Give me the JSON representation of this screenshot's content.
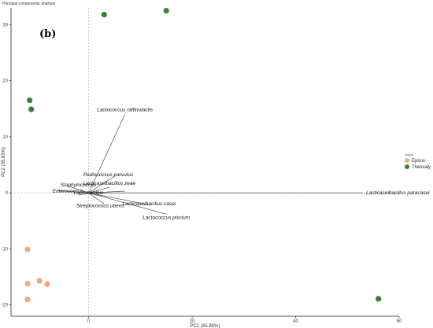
{
  "page_title": "Principal components analysis",
  "panel_label": "(b)",
  "colors": {
    "Epirus": "#f4a582",
    "Thessaly": "#3a7d3a",
    "axis": "#222222",
    "zero_line": "#bdbdbd",
    "loading": "#333333"
  },
  "chart_data": {
    "type": "scatter",
    "title": "",
    "xlabel": "PC1 (85.86%)",
    "ylabel": "PC2 (35.63%)",
    "xlim": [
      -15,
      60
    ],
    "ylim": [
      -22,
      33
    ],
    "xticks": [
      0,
      20,
      40,
      60
    ],
    "yticks": [
      -20,
      -10,
      0,
      10,
      20,
      30
    ],
    "grid": false,
    "legend_title": "region",
    "legend_position": "right",
    "series": [
      {
        "name": "Epirus",
        "points": [
          [
            -11.8,
            -10.1
          ],
          [
            -11.8,
            -16.2
          ],
          [
            -9.5,
            -15.7
          ],
          [
            -8.0,
            -16.3
          ],
          [
            -11.8,
            -19.0
          ]
        ]
      },
      {
        "name": "Thessaly",
        "points": [
          [
            -11.4,
            16.5
          ],
          [
            -11.1,
            14.9
          ],
          [
            3.0,
            31.8
          ],
          [
            15.0,
            32.5
          ],
          [
            56.0,
            -18.9
          ]
        ]
      }
    ],
    "loadings": [
      {
        "label": "Lactococcus raffinolactis",
        "end": [
          7.0,
          14.0
        ]
      },
      {
        "label": "Pediococcus parvulus",
        "end": [
          5.0,
          3.0
        ]
      },
      {
        "label": "Lacticaseibacillus zeae",
        "end": [
          4.0,
          1.0
        ]
      },
      {
        "label": "Lacticaseibacillus paracasei",
        "end": [
          53.0,
          0.0
        ]
      },
      {
        "label": "Lacticaseibacillus casei",
        "end": [
          12.0,
          -2.2
        ]
      },
      {
        "label": "Lactococcus piscium",
        "end": [
          15.0,
          -3.8
        ]
      },
      {
        "label": "Streptococcus uberis",
        "end": [
          3.0,
          -2.0
        ]
      },
      {
        "label": "",
        "end": [
          -6.0,
          0.4
        ]
      },
      {
        "label": "",
        "end": [
          -4.0,
          1.2
        ]
      },
      {
        "label": "",
        "end": [
          -2.0,
          -0.4
        ]
      },
      {
        "label": "",
        "end": [
          7.0,
          0.3
        ]
      }
    ],
    "cluster_labels": [
      {
        "text": "Staphylococcus",
        "at": [
          -2.0,
          1.4
        ]
      },
      {
        "text": "Enterococcus",
        "at": [
          -4.0,
          0.3
        ]
      },
      {
        "text": "Lactobacillus",
        "at": [
          0.0,
          0.0
        ]
      }
    ]
  }
}
